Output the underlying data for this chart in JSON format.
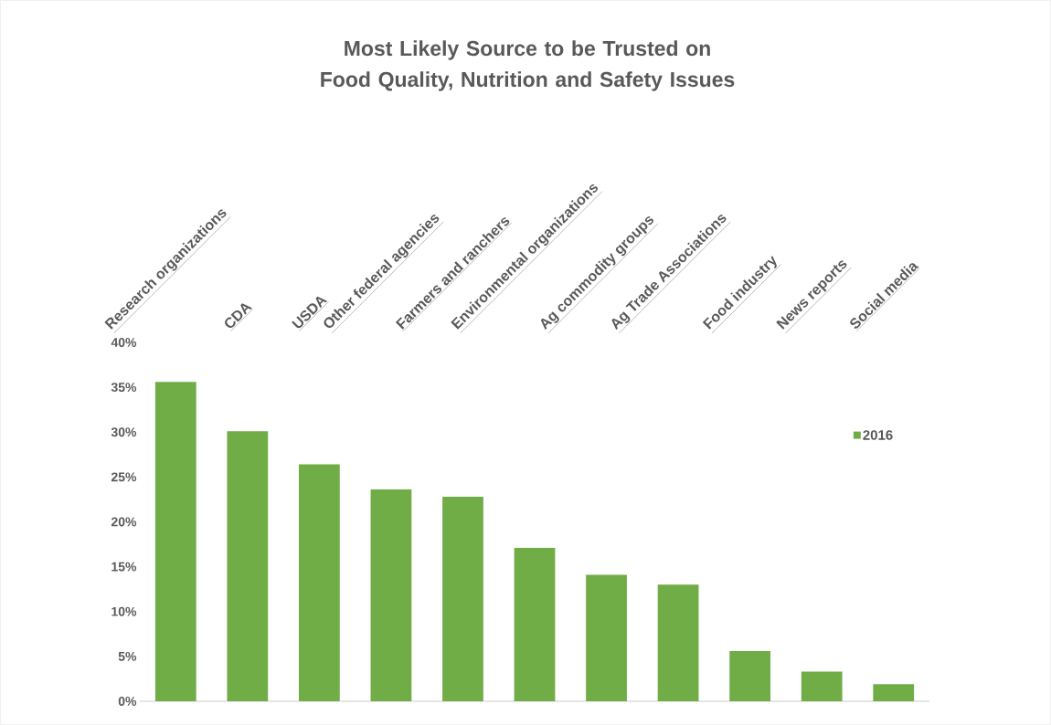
{
  "chart_data": {
    "type": "bar",
    "title": "Most Likely Source to be Trusted on Food Quality, Nutrition and Safety Issues",
    "categories": [
      "Research organizations",
      "CDA",
      "USDA",
      "Other federal agencies",
      "Farmers and ranchers",
      "Environmental organizations",
      "Ag commodity groups",
      "Ag Trade Associations",
      "Food industry",
      "News reports",
      "Social media"
    ],
    "series": [
      {
        "name": "2016",
        "color": "#70ad47",
        "values": [
          35.6,
          30.1,
          26.4,
          23.6,
          22.8,
          17.1,
          14.1,
          13.0,
          5.6,
          3.3,
          1.9
        ]
      }
    ],
    "ylim": [
      0,
      40
    ],
    "yticks": [
      {
        "value": 0,
        "label": "0%"
      },
      {
        "value": 5,
        "label": "5%"
      },
      {
        "value": 10,
        "label": "10%"
      },
      {
        "value": 15,
        "label": "15%"
      },
      {
        "value": 20,
        "label": "20%"
      },
      {
        "value": 25,
        "label": "25%"
      },
      {
        "value": 30,
        "label": "30%"
      },
      {
        "value": 35,
        "label": "35%"
      },
      {
        "value": 40,
        "label": "40%"
      }
    ],
    "grid": false,
    "legend": "right"
  }
}
